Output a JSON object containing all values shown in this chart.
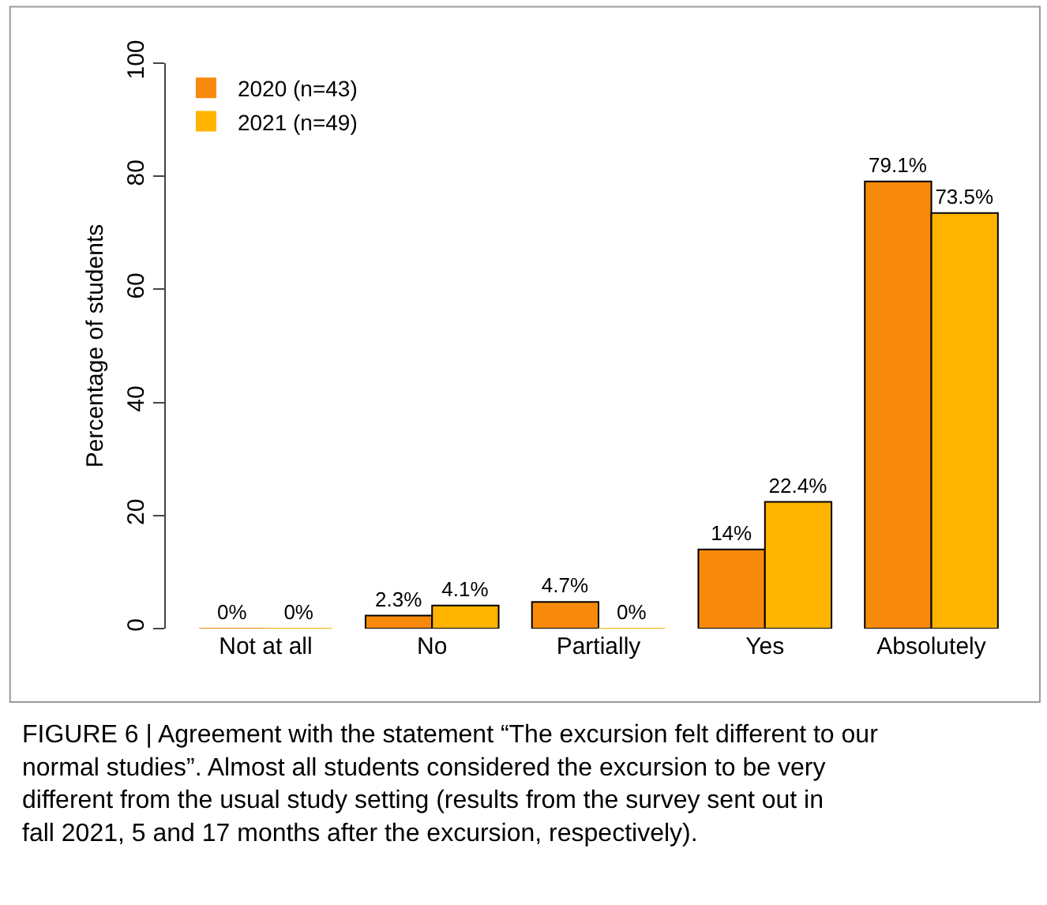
{
  "chart_data": {
    "type": "bar",
    "ylabel": "Percentage of students",
    "categories": [
      "Not at all",
      "No",
      "Partially",
      "Yes",
      "Absolutely"
    ],
    "series": [
      {
        "name": "2020 (n=43)",
        "color": "#f78a0a",
        "values": [
          0,
          2.3,
          4.7,
          14,
          79.1
        ],
        "value_labels": [
          "0%",
          "2.3%",
          "4.7%",
          "14%",
          "79.1%"
        ]
      },
      {
        "name": "2021 (n=49)",
        "color": "#ffb400",
        "values": [
          0,
          4.1,
          0,
          22.4,
          73.5
        ],
        "value_labels": [
          "0%",
          "4.1%",
          "0%",
          "22.4%",
          "73.5%"
        ]
      }
    ],
    "ylim": [
      0,
      100
    ],
    "yticks": [
      0,
      20,
      40,
      60,
      80,
      100
    ],
    "grid": false,
    "legend": "top left",
    "annotations": [
      "FIGURE 6 | Agreement with the statement “The excursion felt different to our normal studies”. Almost all students considered the excursion to be very different from the usual study setting (results from the survey sent out in fall 2021, 5 and 17 months after the excursion, respectively)."
    ]
  }
}
